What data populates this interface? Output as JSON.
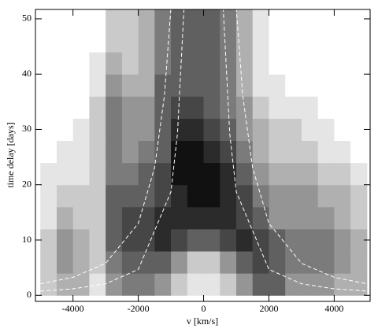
{
  "chart_data": {
    "type": "heatmap",
    "xlabel": "v [km/s]",
    "ylabel": "time delay [days]",
    "xlim": [
      -5150,
      5100
    ],
    "ylim": [
      -1.1,
      51.7
    ],
    "xticks": [
      -4000,
      -2000,
      0,
      2000,
      4000
    ],
    "yticks": [
      0,
      10,
      20,
      30,
      40,
      50
    ],
    "x_bins": [
      -5000,
      -4500,
      -4000,
      -3500,
      -3000,
      -2500,
      -2000,
      -1500,
      -1000,
      -500,
      0,
      500,
      1000,
      1500,
      2000,
      2500,
      3000,
      3500,
      4000,
      4500,
      5000
    ],
    "y_bins": [
      0,
      4,
      8,
      12,
      16,
      20,
      24,
      28,
      32,
      36,
      40,
      44,
      48,
      52
    ],
    "z": [
      [
        2,
        3,
        3,
        1,
        4,
        5,
        5,
        4,
        2,
        1,
        1,
        2,
        4,
        6,
        6,
        4,
        4,
        4,
        3,
        3
      ],
      [
        2,
        4,
        3,
        2,
        5,
        6,
        6,
        6,
        4,
        2,
        2,
        4,
        6,
        7,
        6,
        5,
        5,
        5,
        4,
        3
      ],
      [
        2,
        4,
        3,
        2,
        6,
        7,
        7,
        8,
        7,
        6,
        6,
        7,
        8,
        7,
        6,
        5,
        5,
        5,
        4,
        3
      ],
      [
        1,
        3,
        2,
        2,
        6,
        7,
        7,
        8,
        8,
        8,
        8,
        8,
        7,
        6,
        4,
        4,
        4,
        4,
        3,
        2
      ],
      [
        1,
        2,
        2,
        2,
        6,
        6,
        6,
        7,
        8,
        9,
        9,
        8,
        7,
        5,
        4,
        4,
        4,
        3,
        3,
        2
      ],
      [
        1,
        1,
        1,
        2,
        5,
        5,
        6,
        7,
        9,
        9,
        9,
        8,
        6,
        4,
        3,
        3,
        3,
        2,
        2,
        1
      ],
      [
        0,
        1,
        1,
        2,
        5,
        4,
        5,
        6,
        9,
        9,
        8,
        7,
        5,
        3,
        2,
        2,
        2,
        1,
        1,
        0
      ],
      [
        0,
        0,
        1,
        2,
        5,
        4,
        4,
        6,
        8,
        8,
        7,
        6,
        4,
        3,
        2,
        2,
        1,
        1,
        0,
        0
      ],
      [
        0,
        0,
        0,
        2,
        5,
        4,
        4,
        6,
        7,
        7,
        6,
        5,
        4,
        2,
        1,
        1,
        1,
        0,
        0,
        0
      ],
      [
        0,
        0,
        0,
        1,
        4,
        3,
        3,
        6,
        6,
        6,
        6,
        5,
        3,
        1,
        1,
        0,
        0,
        0,
        0,
        0
      ],
      [
        0,
        0,
        0,
        1,
        3,
        2,
        3,
        5,
        6,
        6,
        6,
        5,
        3,
        1,
        0,
        0,
        0,
        0,
        0,
        0
      ],
      [
        0,
        0,
        0,
        0,
        2,
        2,
        3,
        5,
        6,
        6,
        6,
        5,
        3,
        1,
        0,
        0,
        0,
        0,
        0,
        0
      ],
      [
        0,
        0,
        0,
        0,
        2,
        2,
        3,
        5,
        6,
        6,
        6,
        5,
        3,
        1,
        0,
        0,
        0,
        0,
        0,
        0
      ]
    ],
    "zlim": [
      0,
      9
    ],
    "curves": [
      {
        "color": "#ffffff",
        "x": [
          -5000,
          -4000,
          -3000,
          -2000,
          -1500,
          -1200,
          -1000,
          0,
          1000,
          1200,
          1500,
          2000,
          3000,
          4000,
          5000
        ],
        "y": [
          2.08,
          3.25,
          5.78,
          13,
          23.1,
          36.1,
          52,
          null,
          52,
          36.1,
          23.1,
          13,
          5.78,
          3.25,
          2.08
        ]
      },
      {
        "color": "#ffffff",
        "x": [
          -5000,
          -4000,
          -3000,
          -2000,
          -1000,
          -800,
          -600,
          0,
          600,
          800,
          1000,
          2000,
          3000,
          4000,
          5000
        ],
        "y": [
          0.75,
          1.17,
          2.08,
          4.68,
          18.72,
          29.25,
          52,
          null,
          52,
          29.25,
          18.72,
          4.68,
          2.08,
          1.17,
          0.75
        ]
      }
    ]
  }
}
